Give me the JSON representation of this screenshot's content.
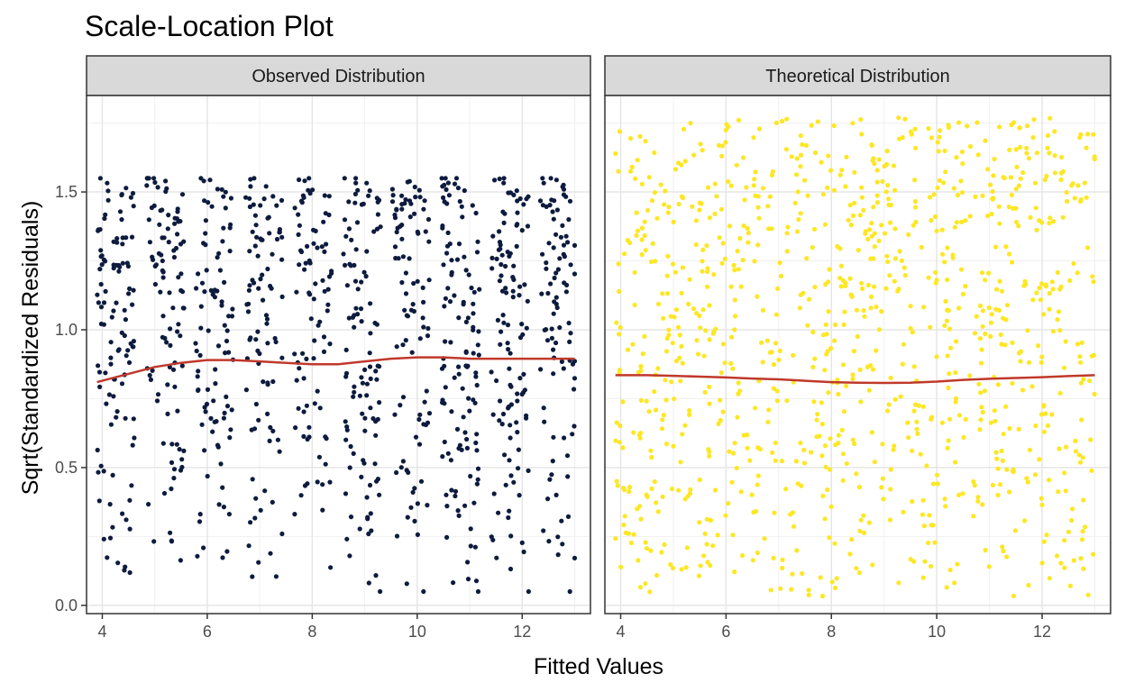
{
  "chart_data": {
    "type": "scatter",
    "title": "Scale-Location Plot",
    "xlabel": "Fitted Values",
    "ylabel": "Sqrt(Standardized Residuals)",
    "xlim": [
      3.7,
      13.3
    ],
    "ylim": [
      -0.03,
      1.85
    ],
    "x_ticks": [
      4,
      6,
      8,
      10,
      12
    ],
    "x_tick_labels": [
      "4",
      "6",
      "8",
      "10",
      "12"
    ],
    "y_ticks": [
      0.0,
      0.5,
      1.0,
      1.5
    ],
    "y_tick_labels": [
      "0.0",
      "0.5",
      "1.0",
      "1.5"
    ],
    "grid": true,
    "n_points_per_panel": 1000,
    "panels": [
      {
        "strip_label": "Observed Distribution",
        "point_color": "#0d1b3e",
        "distribution": "clustered",
        "x_range": [
          3.9,
          13.0
        ],
        "y_range": [
          0.05,
          1.55
        ],
        "smooth_color": "#c0392b",
        "smooth": {
          "x": [
            3.9,
            4.5,
            5.0,
            5.5,
            6.0,
            6.5,
            7.0,
            7.5,
            8.0,
            8.5,
            9.0,
            9.5,
            10.0,
            10.5,
            11.0,
            11.5,
            12.0,
            12.5,
            13.0
          ],
          "y": [
            0.81,
            0.84,
            0.865,
            0.88,
            0.89,
            0.89,
            0.885,
            0.88,
            0.875,
            0.875,
            0.885,
            0.895,
            0.9,
            0.9,
            0.895,
            0.895,
            0.895,
            0.895,
            0.895
          ]
        }
      },
      {
        "strip_label": "Theoretical Distribution",
        "point_color": "#fde725",
        "distribution": "uniform",
        "x_range": [
          3.9,
          13.0
        ],
        "y_range": [
          0.03,
          1.77
        ],
        "smooth_color": "#c0392b",
        "smooth": {
          "x": [
            3.9,
            4.5,
            5.0,
            5.5,
            6.0,
            6.5,
            7.0,
            7.5,
            8.0,
            8.5,
            9.0,
            9.5,
            10.0,
            10.5,
            11.0,
            11.5,
            12.0,
            12.5,
            13.0
          ],
          "y": [
            0.835,
            0.835,
            0.833,
            0.83,
            0.827,
            0.823,
            0.82,
            0.815,
            0.81,
            0.808,
            0.807,
            0.808,
            0.812,
            0.818,
            0.822,
            0.825,
            0.828,
            0.832,
            0.835
          ]
        }
      }
    ]
  }
}
